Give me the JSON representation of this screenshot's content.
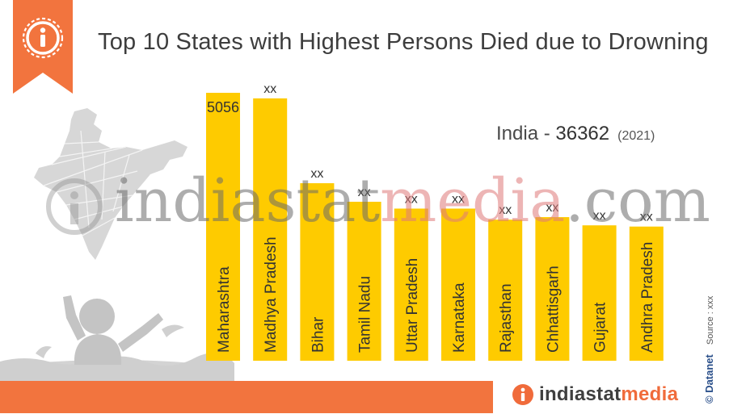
{
  "title": "Top 10 States with Highest Persons Died due to Drowning",
  "summary": {
    "label": "India - ",
    "value": "36362",
    "year": "(2021)"
  },
  "credits": {
    "brand": "© Datanet",
    "source": "Source : xxx"
  },
  "footer": {
    "brand_part1": "indiastat",
    "brand_part2": "media"
  },
  "watermark": {
    "part1": "indiastat",
    "part2": "media",
    "part3": ".com"
  },
  "colors": {
    "bar": "#fecb00",
    "accent": "#f2743e",
    "title": "#3d3d3d",
    "footer_accent": "#f06b3b"
  },
  "icons": [
    "info-icon",
    "india-map-icon",
    "drowning-child-icon"
  ],
  "chart_data": {
    "type": "bar",
    "categories": [
      "Maharashtra",
      "Madhya Pradesh",
      "Bihar",
      "Tamil Nadu",
      "Uttar Pradesh",
      "Karnataka",
      "Rajasthan",
      "Chhattisgarh",
      "Gujarat",
      "Andhra Pradesh"
    ],
    "values": [
      5056,
      4951,
      3350,
      3000,
      2871,
      2871,
      2662,
      2710,
      2555,
      2532
    ],
    "labels": [
      "5056",
      "xx",
      "xx",
      "xx",
      "xx",
      "xx",
      "xx",
      "xx",
      "xx",
      "xx"
    ],
    "ylim": [
      0,
      5056
    ],
    "grid": false,
    "legend": "none"
  }
}
